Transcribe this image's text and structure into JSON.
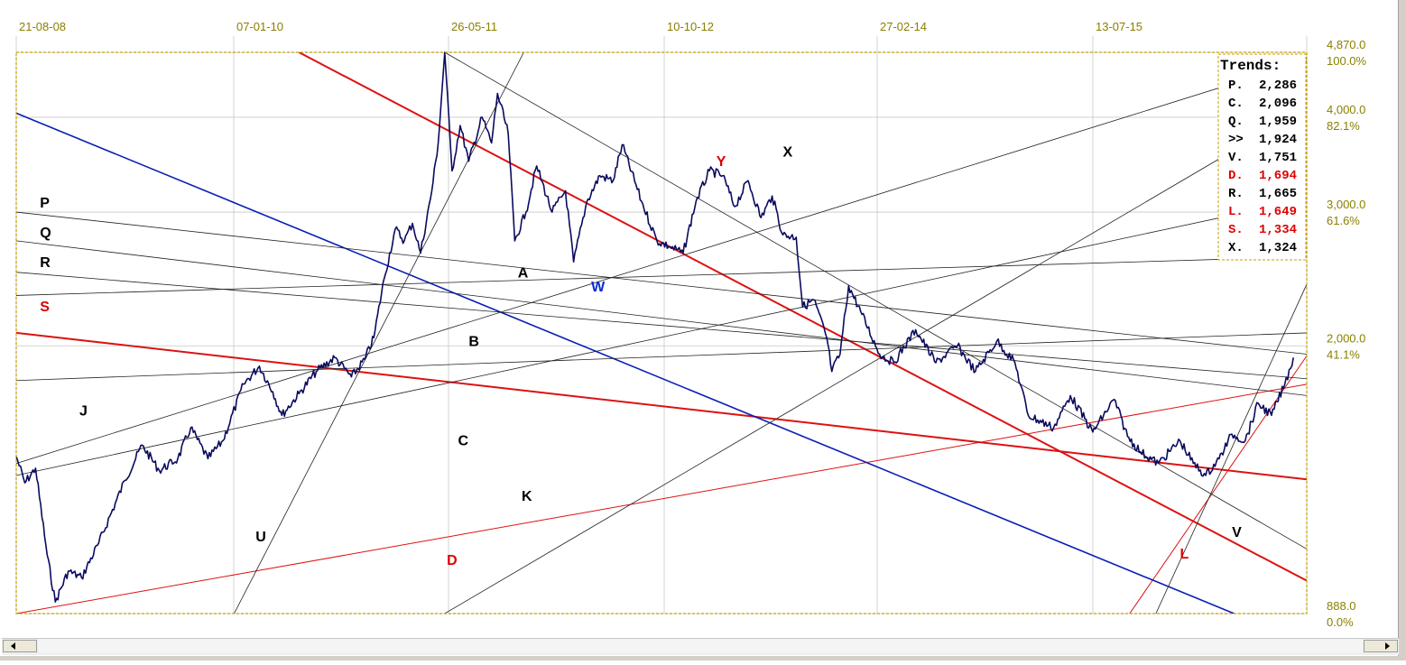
{
  "chart_data": {
    "type": "line",
    "x_tick_labels": [
      "21-08-08",
      "07-01-10",
      "26-05-11",
      "10-10-12",
      "27-02-14",
      "13-07-15"
    ],
    "y_price_labels": [
      "4,870.0",
      "4,000.0",
      "3,000.0",
      "2,000.0",
      "888.0"
    ],
    "y_percent_labels": [
      "100.0%",
      "82.1%",
      "61.6%",
      "41.1%",
      "0.0%"
    ],
    "ylim": [
      888,
      4870
    ],
    "x_range": [
      "2008-08-21",
      "2016-10"
    ],
    "scale": "log",
    "grid": true,
    "colors": {
      "price": "#0a0a5e",
      "red_trend": "#dd1111",
      "blue_trend": "#0a1eb4",
      "thin_line": "#222222",
      "grid": "#c8c8c8",
      "frame": "#c8a000",
      "label_black": "#000000",
      "label_red": "#dd0000",
      "label_blue": "#0a2bd0"
    },
    "series": [
      {
        "values": [
          {
            "x": "2008-08-21",
            "y": 1430
          },
          {
            "x": "2008-09-10",
            "y": 1320
          },
          {
            "x": "2008-10-05",
            "y": 1380
          },
          {
            "x": "2008-11-01",
            "y": 1060
          },
          {
            "x": "2008-11-20",
            "y": 920
          },
          {
            "x": "2008-12-20",
            "y": 1010
          },
          {
            "x": "2009-01-20",
            "y": 990
          },
          {
            "x": "2009-03-01",
            "y": 1100
          },
          {
            "x": "2009-05-01",
            "y": 1330
          },
          {
            "x": "2009-06-10",
            "y": 1480
          },
          {
            "x": "2009-07-20",
            "y": 1370
          },
          {
            "x": "2009-09-01",
            "y": 1420
          },
          {
            "x": "2009-10-01",
            "y": 1560
          },
          {
            "x": "2009-11-10",
            "y": 1420
          },
          {
            "x": "2009-12-15",
            "y": 1500
          },
          {
            "x": "2010-02-01",
            "y": 1780
          },
          {
            "x": "2010-03-10",
            "y": 1880
          },
          {
            "x": "2010-04-10",
            "y": 1740
          },
          {
            "x": "2010-05-01",
            "y": 1620
          },
          {
            "x": "2010-06-10",
            "y": 1730
          },
          {
            "x": "2010-07-20",
            "y": 1850
          },
          {
            "x": "2010-09-01",
            "y": 1930
          },
          {
            "x": "2010-10-10",
            "y": 1820
          },
          {
            "x": "2010-11-10",
            "y": 1920
          },
          {
            "x": "2010-12-01",
            "y": 2050
          },
          {
            "x": "2010-12-25",
            "y": 2450
          },
          {
            "x": "2011-01-20",
            "y": 2850
          },
          {
            "x": "2011-02-10",
            "y": 2750
          },
          {
            "x": "2011-03-01",
            "y": 2900
          },
          {
            "x": "2011-03-20",
            "y": 2650
          },
          {
            "x": "2011-04-15",
            "y": 3200
          },
          {
            "x": "2011-04-30",
            "y": 3700
          },
          {
            "x": "2011-05-15",
            "y": 4870
          },
          {
            "x": "2011-06-01",
            "y": 3400
          },
          {
            "x": "2011-06-20",
            "y": 3900
          },
          {
            "x": "2011-07-10",
            "y": 3500
          },
          {
            "x": "2011-08-10",
            "y": 4000
          },
          {
            "x": "2011-09-01",
            "y": 3700
          },
          {
            "x": "2011-09-15",
            "y": 4300
          },
          {
            "x": "2011-10-10",
            "y": 3800
          },
          {
            "x": "2011-10-25",
            "y": 2750
          },
          {
            "x": "2011-11-20",
            "y": 3000
          },
          {
            "x": "2011-12-15",
            "y": 3450
          },
          {
            "x": "2012-01-20",
            "y": 3000
          },
          {
            "x": "2012-02-20",
            "y": 3200
          },
          {
            "x": "2012-03-10",
            "y": 2580
          },
          {
            "x": "2012-04-10",
            "y": 3100
          },
          {
            "x": "2012-05-10",
            "y": 3350
          },
          {
            "x": "2012-06-10",
            "y": 3300
          },
          {
            "x": "2012-07-01",
            "y": 3680
          },
          {
            "x": "2012-08-15",
            "y": 3100
          },
          {
            "x": "2012-09-20",
            "y": 2750
          },
          {
            "x": "2012-10-20",
            "y": 2700
          },
          {
            "x": "2012-11-20",
            "y": 2650
          },
          {
            "x": "2012-12-20",
            "y": 3100
          },
          {
            "x": "2013-01-20",
            "y": 3400
          },
          {
            "x": "2013-02-20",
            "y": 3350
          },
          {
            "x": "2013-03-20",
            "y": 3050
          },
          {
            "x": "2013-04-20",
            "y": 3300
          },
          {
            "x": "2013-05-20",
            "y": 2950
          },
          {
            "x": "2013-06-15",
            "y": 3150
          },
          {
            "x": "2013-07-10",
            "y": 2800
          },
          {
            "x": "2013-08-10",
            "y": 2780
          },
          {
            "x": "2013-08-25",
            "y": 2250
          },
          {
            "x": "2013-09-20",
            "y": 2300
          },
          {
            "x": "2013-10-20",
            "y": 2050
          },
          {
            "x": "2013-11-01",
            "y": 1850
          },
          {
            "x": "2013-11-20",
            "y": 1950
          },
          {
            "x": "2013-12-10",
            "y": 2400
          },
          {
            "x": "2014-01-10",
            "y": 2200
          },
          {
            "x": "2014-02-20",
            "y": 1950
          },
          {
            "x": "2014-03-25",
            "y": 1900
          },
          {
            "x": "2014-05-15",
            "y": 2100
          },
          {
            "x": "2014-07-01",
            "y": 1900
          },
          {
            "x": "2014-08-20",
            "y": 2000
          },
          {
            "x": "2014-10-01",
            "y": 1850
          },
          {
            "x": "2014-11-20",
            "y": 2030
          },
          {
            "x": "2015-01-01",
            "y": 1900
          },
          {
            "x": "2015-02-01",
            "y": 1620
          },
          {
            "x": "2015-04-01",
            "y": 1560
          },
          {
            "x": "2015-05-10",
            "y": 1720
          },
          {
            "x": "2015-07-01",
            "y": 1540
          },
          {
            "x": "2015-08-20",
            "y": 1700
          },
          {
            "x": "2015-09-20",
            "y": 1520
          },
          {
            "x": "2015-10-20",
            "y": 1450
          },
          {
            "x": "2015-12-01",
            "y": 1400
          },
          {
            "x": "2016-01-20",
            "y": 1500
          },
          {
            "x": "2016-02-20",
            "y": 1400
          },
          {
            "x": "2016-03-20",
            "y": 1350
          },
          {
            "x": "2016-04-20",
            "y": 1420
          },
          {
            "x": "2016-05-20",
            "y": 1530
          },
          {
            "x": "2016-06-20",
            "y": 1500
          },
          {
            "x": "2016-07-20",
            "y": 1680
          },
          {
            "x": "2016-08-20",
            "y": 1620
          },
          {
            "x": "2016-09-20",
            "y": 1780
          },
          {
            "x": "2016-10-10",
            "y": 1930
          }
        ]
      }
    ],
    "trend_lines": [
      {
        "color": "red_trend",
        "width": 2,
        "start": {
          "x": "2010-06-10",
          "y": 4870
        },
        "end": {
          "x": "2017-04-05",
          "y": 888
        }
      },
      {
        "color": "red_trend",
        "width": 2,
        "start": {
          "x": "2008-08-21",
          "y": 2080
        },
        "end": {
          "x": "2016-11-10",
          "y": 1334
        }
      },
      {
        "color": "red_trend",
        "width": 1,
        "start": {
          "x": "2008-08-21",
          "y": 888
        },
        "end": {
          "x": "2016-11-10",
          "y": 1780
        }
      },
      {
        "color": "red_trend",
        "width": 1,
        "start": {
          "x": "2015-09-25",
          "y": 888
        },
        "end": {
          "x": "2016-11-10",
          "y": 1940
        }
      },
      {
        "color": "blue_trend",
        "width": 1.6,
        "start": {
          "x": "2008-08-21",
          "y": 4050
        },
        "end": {
          "x": "2016-05-25",
          "y": 888
        }
      },
      {
        "color": "thin_line",
        "width": 0.8,
        "start": {
          "x": "2008-08-21",
          "y": 3000
        },
        "end": {
          "x": "2016-11-10",
          "y": 1950
        }
      },
      {
        "color": "thin_line",
        "width": 0.8,
        "start": {
          "x": "2008-08-21",
          "y": 2750
        },
        "end": {
          "x": "2016-11-10",
          "y": 1720
        }
      },
      {
        "color": "thin_line",
        "width": 0.8,
        "start": {
          "x": "2008-08-21",
          "y": 2500
        },
        "end": {
          "x": "2016-11-10",
          "y": 1810
        }
      },
      {
        "color": "thin_line",
        "width": 0.8,
        "start": {
          "x": "2008-08-21",
          "y": 2330
        },
        "end": {
          "x": "2016-11-10",
          "y": 2620
        }
      },
      {
        "color": "thin_line",
        "width": 0.8,
        "start": {
          "x": "2008-08-21",
          "y": 1800
        },
        "end": {
          "x": "2016-11-10",
          "y": 2080
        }
      },
      {
        "color": "thin_line",
        "width": 0.8,
        "start": {
          "x": "2008-08-21",
          "y": 1350
        },
        "end": {
          "x": "2016-11-10",
          "y": 3120
        }
      },
      {
        "color": "thin_line",
        "width": 0.8,
        "start": {
          "x": "2008-08-21",
          "y": 1400
        },
        "end": {
          "x": "2016-11-10",
          "y": 4750
        }
      },
      {
        "color": "thin_line",
        "width": 0.8,
        "start": {
          "x": "2010-01-10",
          "y": 888
        },
        "end": {
          "x": "2011-11-15",
          "y": 4870
        }
      },
      {
        "color": "thin_line",
        "width": 0.8,
        "start": {
          "x": "2011-05-15",
          "y": 4870
        },
        "end": {
          "x": "2016-11-10",
          "y": 1080
        }
      },
      {
        "color": "thin_line",
        "width": 0.8,
        "start": {
          "x": "2011-05-15",
          "y": 888
        },
        "end": {
          "x": "2016-11-10",
          "y": 4120
        }
      },
      {
        "color": "thin_line",
        "width": 0.8,
        "start": {
          "x": "2015-11-25",
          "y": 888
        },
        "end": {
          "x": "2016-11-10",
          "y": 2410
        }
      }
    ],
    "annotations": [
      {
        "text": "P",
        "x": "2008-10-15",
        "y": 3040,
        "color": "label_black"
      },
      {
        "text": "Q",
        "x": "2008-10-15",
        "y": 2780,
        "color": "label_black"
      },
      {
        "text": "R",
        "x": "2008-10-15",
        "y": 2540,
        "color": "label_black"
      },
      {
        "text": "S",
        "x": "2008-10-15",
        "y": 2220,
        "color": "label_red"
      },
      {
        "text": "J",
        "x": "2009-01-15",
        "y": 1620,
        "color": "label_black"
      },
      {
        "text": "U",
        "x": "2010-03-01",
        "y": 1105,
        "color": "label_black"
      },
      {
        "text": "A",
        "x": "2011-11-01",
        "y": 2460,
        "color": "label_black"
      },
      {
        "text": "W",
        "x": "2012-04-20",
        "y": 2360,
        "color": "label_blue"
      },
      {
        "text": "B",
        "x": "2011-07-10",
        "y": 2000,
        "color": "label_black"
      },
      {
        "text": "C",
        "x": "2011-06-15",
        "y": 1480,
        "color": "label_black"
      },
      {
        "text": "K",
        "x": "2011-11-10",
        "y": 1250,
        "color": "label_black"
      },
      {
        "text": "D",
        "x": "2011-05-20",
        "y": 1030,
        "color": "label_red"
      },
      {
        "text": "Y",
        "x": "2013-02-05",
        "y": 3450,
        "color": "label_red"
      },
      {
        "text": "X",
        "x": "2013-07-10",
        "y": 3550,
        "color": "label_black"
      },
      {
        "text": "L",
        "x": "2016-01-20",
        "y": 1050,
        "color": "label_red"
      },
      {
        "text": "V",
        "x": "2016-05-20",
        "y": 1120,
        "color": "label_black"
      }
    ],
    "legend": {
      "position": "top-right",
      "title": "Trends:",
      "items": [
        {
          "tag": "P.",
          "value": "2,286",
          "color": "label_black"
        },
        {
          "tag": "C.",
          "value": "2,096",
          "color": "label_black"
        },
        {
          "tag": "Q.",
          "value": "1,959",
          "color": "label_black"
        },
        {
          "tag": ">>",
          "value": "1,924",
          "color": "label_black"
        },
        {
          "tag": "V.",
          "value": "1,751",
          "color": "label_black"
        },
        {
          "tag": "D.",
          "value": "1,694",
          "color": "label_red"
        },
        {
          "tag": "R.",
          "value": "1,665",
          "color": "label_black"
        },
        {
          "tag": "L.",
          "value": "1,649",
          "color": "label_red"
        },
        {
          "tag": "S.",
          "value": "1,334",
          "color": "label_red"
        },
        {
          "tag": "X.",
          "value": "1,324",
          "color": "label_black"
        }
      ]
    }
  },
  "scrollbar": {
    "left_icon": "arrow-left-icon",
    "right_icon": "arrow-right-icon"
  }
}
